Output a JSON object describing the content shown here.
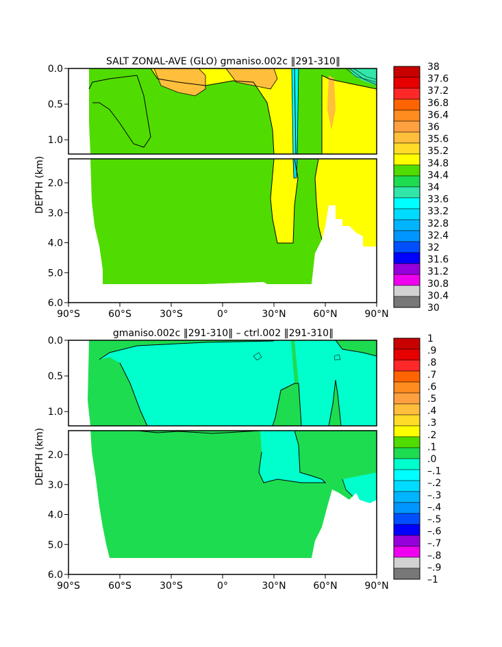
{
  "chart_data": [
    {
      "type": "heatmap",
      "title": "SALT ZONAL-AVE (GLO) gmaniso.002c ‖291-310‖",
      "xlabel": "",
      "ylabel": "DEPTH (km)",
      "x_ticks": [
        "90°S",
        "60°S",
        "30°S",
        "0°",
        "30°N",
        "60°N",
        "90°N"
      ],
      "y_ticks": [
        "0.0",
        "0.5",
        "1.0",
        "2.0",
        "3.0",
        "4.0",
        "5.0",
        "6.0"
      ],
      "xlim": [
        -90,
        90
      ],
      "ylim": [
        6.0,
        0.0
      ],
      "y_axis_break_km": 1.2,
      "colorbar_labels": [
        "38",
        "37.6",
        "37.2",
        "36.8",
        "36.4",
        "36",
        "35.6",
        "35.2",
        "34.8",
        "34.4",
        "34",
        "33.6",
        "33.2",
        "32.8",
        "32.4",
        "32",
        "31.6",
        "31.2",
        "30.8",
        "30.4",
        "30"
      ],
      "colorbar_colors": [
        "#c80000",
        "#e60000",
        "#ff2828",
        "#ff6400",
        "#ff8c1e",
        "#ffa040",
        "#ffbe3c",
        "#ffdc28",
        "#ffff00",
        "#50dc00",
        "#1edc50",
        "#32e6aa",
        "#00ffff",
        "#00dcff",
        "#00b4ff",
        "#0096ff",
        "#0050ff",
        "#0000ff",
        "#9600dc",
        "#f000f0",
        "#d2d2d2",
        "#787878"
      ],
      "regions": [
        {
          "value": 34.6,
          "description_level": "background"
        },
        {
          "value": 35.0,
          "description_level": "north-high"
        },
        {
          "value": 35.4,
          "description_level": "subtropical"
        },
        {
          "value": 35.8,
          "description_level": "subtropical-core"
        }
      ]
    },
    {
      "type": "heatmap",
      "title": "gmaniso.002c ‖291-310‖ – ctrl.002 ‖291-310‖",
      "xlabel": "",
      "ylabel": "DEPTH (km)",
      "x_ticks": [
        "90°S",
        "60°S",
        "30°S",
        "0°",
        "30°N",
        "60°N",
        "90°N"
      ],
      "y_ticks": [
        "0.0",
        "0.5",
        "1.0",
        "2.0",
        "3.0",
        "4.0",
        "5.0",
        "6.0"
      ],
      "xlim": [
        -90,
        90
      ],
      "ylim": [
        6.0,
        0.0
      ],
      "y_axis_break_km": 1.2,
      "colorbar_labels": [
        "1",
        ".9",
        ".8",
        ".7",
        ".6",
        ".5",
        ".4",
        ".3",
        ".2",
        ".1",
        ".0",
        "–.1",
        "–.2",
        "–.3",
        "–.4",
        "–.5",
        "–.6",
        "–.7",
        "–.8",
        "–.9",
        "–1"
      ],
      "colorbar_colors": [
        "#c80000",
        "#e60000",
        "#ff2828",
        "#ff6400",
        "#ff8c1e",
        "#ffa040",
        "#ffbe3c",
        "#ffdc28",
        "#ffff00",
        "#50dc00",
        "#1edc50",
        "#00ffcc",
        "#00ffff",
        "#00dcff",
        "#00b4ff",
        "#0096ff",
        "#0050ff",
        "#0000ff",
        "#9600dc",
        "#f000f0",
        "#d2d2d2",
        "#787878"
      ],
      "regions": [
        {
          "value": 0.05,
          "description_level": "positive-small"
        },
        {
          "value": -0.05,
          "description_level": "negative-small"
        }
      ]
    }
  ]
}
